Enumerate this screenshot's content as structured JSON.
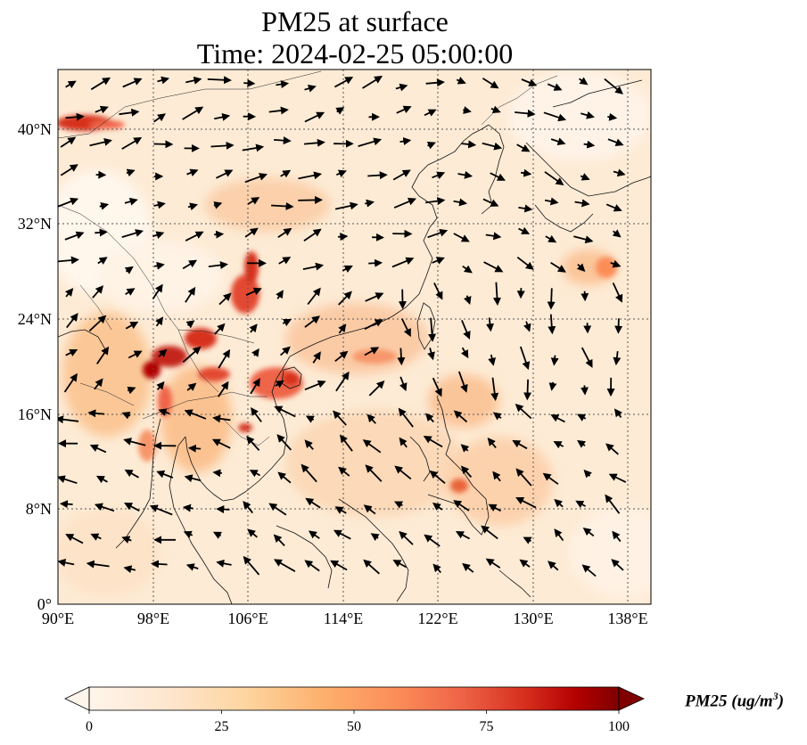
{
  "title": {
    "line1": "PM25 at surface",
    "line2": "Time: 2024-02-25 05:00:00"
  },
  "map": {
    "lon_range": [
      90,
      140
    ],
    "lat_range": [
      0,
      45
    ],
    "lon_ticks": [
      "90°E",
      "98°E",
      "106°E",
      "114°E",
      "122°E",
      "130°E",
      "138°E"
    ],
    "lat_ticks": [
      "0°",
      "8°N",
      "16°N",
      "24°N",
      "32°N",
      "40°N"
    ]
  },
  "colorbar": {
    "label_main": "PM25 (ug/m",
    "label_sup": "3",
    "label_close": ")",
    "ticks": [
      "0",
      "25",
      "50",
      "75",
      "100"
    ],
    "range": [
      0,
      100
    ],
    "colors": [
      "#fff5eb",
      "#fdd49e",
      "#fdbb84",
      "#fc8d59",
      "#ef6548",
      "#d7301f",
      "#b30000",
      "#7f0000"
    ]
  }
}
